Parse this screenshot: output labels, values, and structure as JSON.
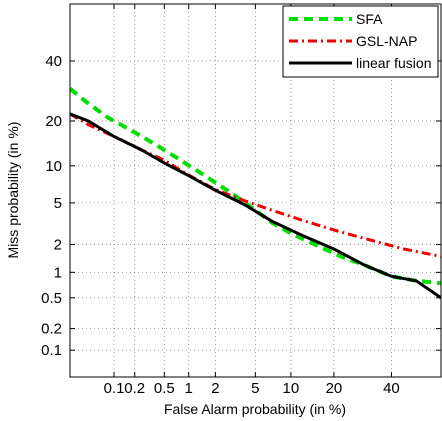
{
  "chart_data": {
    "type": "line",
    "title": "",
    "xlabel": "False Alarm probability (in %)",
    "ylabel": "Miss probability (in %)",
    "scale": "normal-deviate (DET)",
    "xlim": [
      0.02,
      60
    ],
    "ylim": [
      0.04,
      62
    ],
    "grid": true,
    "legend_position": "top-right",
    "x_ticks": [
      {
        "value": 0.1,
        "label": "0.1"
      },
      {
        "value": 0.2,
        "label": "0.2"
      },
      {
        "value": 0.5,
        "label": "0.5"
      },
      {
        "value": 1,
        "label": "1"
      },
      {
        "value": 2,
        "label": "2"
      },
      {
        "value": 5,
        "label": "5"
      },
      {
        "value": 10,
        "label": "10"
      },
      {
        "value": 20,
        "label": "20"
      },
      {
        "value": 40,
        "label": "40"
      }
    ],
    "y_ticks": [
      {
        "value": 0.1,
        "label": "0.1"
      },
      {
        "value": 0.2,
        "label": "0.2"
      },
      {
        "value": 0.5,
        "label": "0.5"
      },
      {
        "value": 1,
        "label": "1"
      },
      {
        "value": 2,
        "label": "2"
      },
      {
        "value": 5,
        "label": "5"
      },
      {
        "value": 10,
        "label": "10"
      },
      {
        "value": 20,
        "label": "20"
      },
      {
        "value": 40,
        "label": "40"
      }
    ],
    "series": [
      {
        "name": "SFA",
        "color": "#00dd00",
        "dash": "dashed",
        "points": [
          [
            0.02,
            30
          ],
          [
            0.035,
            26
          ],
          [
            0.08,
            21
          ],
          [
            0.2,
            17
          ],
          [
            0.4,
            14
          ],
          [
            0.8,
            11
          ],
          [
            1.5,
            8.5
          ],
          [
            3,
            6
          ],
          [
            5,
            4.3
          ],
          [
            7,
            3.3
          ],
          [
            10,
            2.6
          ],
          [
            15,
            2.0
          ],
          [
            22,
            1.5
          ],
          [
            30,
            1.2
          ],
          [
            40,
            0.9
          ],
          [
            50,
            0.8
          ],
          [
            60,
            0.75
          ]
        ]
      },
      {
        "name": "GSL-NAP",
        "color": "#ee0000",
        "dash": "dash-dot",
        "points": [
          [
            0.02,
            22
          ],
          [
            0.04,
            19
          ],
          [
            0.1,
            16
          ],
          [
            0.25,
            13
          ],
          [
            0.5,
            11
          ],
          [
            1,
            8.5
          ],
          [
            2,
            6.5
          ],
          [
            4,
            5.2
          ],
          [
            7,
            4.3
          ],
          [
            12,
            3.5
          ],
          [
            20,
            2.8
          ],
          [
            30,
            2.3
          ],
          [
            45,
            1.8
          ],
          [
            60,
            1.5
          ]
        ]
      },
      {
        "name": "linear fusion",
        "color": "#000000",
        "dash": "solid",
        "points": [
          [
            0.02,
            22
          ],
          [
            0.04,
            20
          ],
          [
            0.1,
            16
          ],
          [
            0.25,
            13
          ],
          [
            0.5,
            10.5
          ],
          [
            1,
            8.4
          ],
          [
            2,
            6.4
          ],
          [
            4,
            4.8
          ],
          [
            7,
            3.4
          ],
          [
            12,
            2.5
          ],
          [
            20,
            1.8
          ],
          [
            30,
            1.2
          ],
          [
            40,
            0.9
          ],
          [
            50,
            0.8
          ],
          [
            60,
            0.5
          ]
        ]
      }
    ]
  }
}
